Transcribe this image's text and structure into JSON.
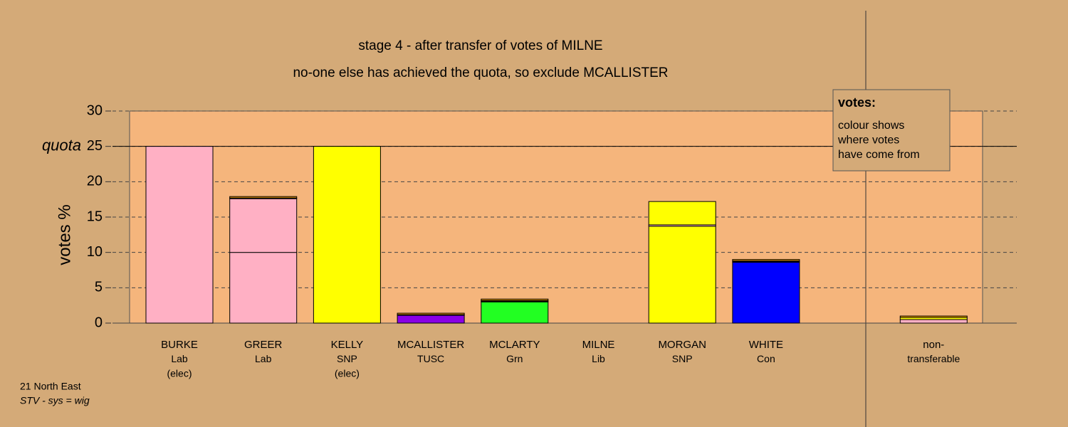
{
  "chart_data": {
    "type": "stacked-bar",
    "title": "stage 4 - after transfer of votes of MILNE",
    "subtitle": "no-one else has achieved the quota, so exclude MCALLISTER",
    "y_label": "votes %",
    "quota": 25,
    "quota_label": "quota",
    "ylim": [
      0,
      30
    ],
    "yticks": [
      0,
      5,
      10,
      15,
      20,
      25,
      30
    ],
    "grid": true,
    "categories": [
      [
        "BURKE",
        "Lab",
        "(elec)"
      ],
      [
        "GREER",
        "Lab"
      ],
      [
        "KELLY",
        "SNP",
        "(elec)"
      ],
      [
        "MCALLISTER",
        "TUSC"
      ],
      [
        "MCLARTY",
        "Grn"
      ],
      [
        "MILNE",
        "Lib"
      ],
      [
        "MORGAN",
        "SNP"
      ],
      [
        "WHITE",
        "Con"
      ],
      [
        "non-",
        "transferable"
      ]
    ],
    "series": [
      {
        "colors": [
          "#ffb0c4",
          "#ffb0c4",
          "#ffff00",
          "#8a00e6",
          "#22ff22",
          "#ffa500",
          "#ffff00",
          "#0000ff",
          "#ffb0c4"
        ],
        "values": [
          25,
          10,
          25,
          1.1,
          3.0,
          0,
          13.7,
          8.6,
          0
        ]
      },
      {
        "color": "#ffb0c4",
        "values": [
          0,
          7.6,
          0,
          0.05,
          0.1,
          0,
          0.2,
          0.1,
          0.5
        ]
      },
      {
        "color": "#ffff00",
        "values": [
          0,
          0.1,
          0,
          0.05,
          0.1,
          0,
          3.3,
          0.1,
          0.3
        ]
      },
      {
        "color": "#ffa500",
        "values": [
          0,
          0.2,
          0,
          0.2,
          0.2,
          0,
          0,
          0.2,
          0.2
        ]
      }
    ],
    "legend": {
      "title": "votes:",
      "lines": [
        "colour shows",
        "where votes",
        "have come from"
      ]
    },
    "footer": {
      "region": "21 North East",
      "system": "STV - sys = wig"
    }
  }
}
